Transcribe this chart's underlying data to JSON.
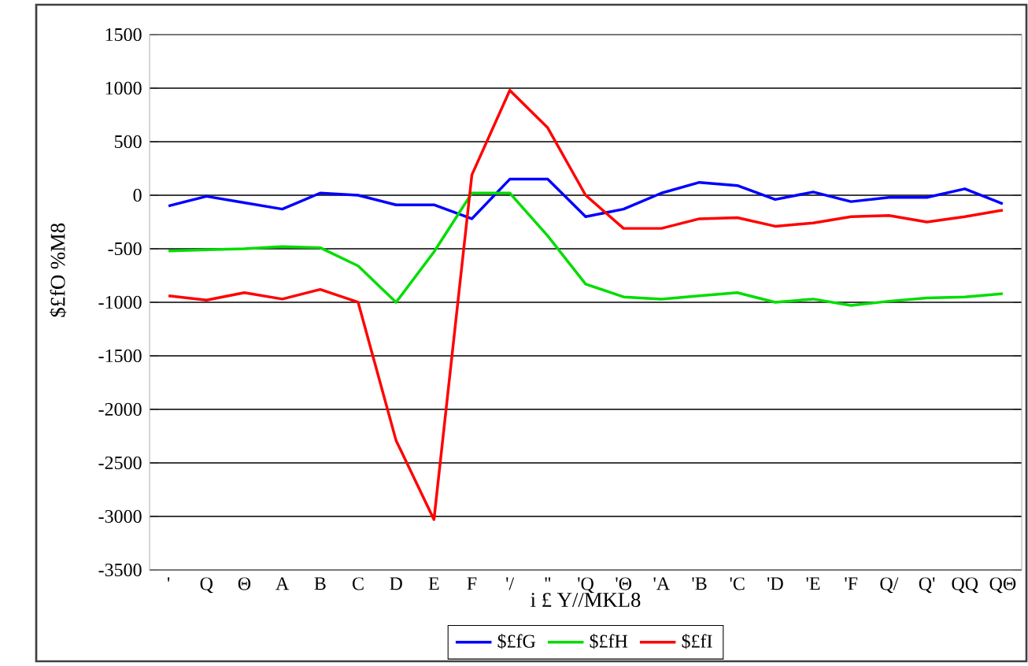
{
  "chart_data": {
    "type": "line",
    "xlabel": "i £ Y//MKL8",
    "ylabel": "$£fO %M8",
    "categories": [
      "'",
      "Q",
      "Θ",
      "A",
      "B",
      "C",
      "D",
      "E",
      "F",
      "'/",
      "''",
      "'Q",
      "'Θ",
      "'A",
      "'B",
      "'C",
      "'D",
      "'E",
      "'F",
      "Q/",
      "Q'",
      "QQ",
      "QΘ"
    ],
    "ylim": [
      -3500,
      1500
    ],
    "yticks": [
      -3500,
      -3000,
      -2500,
      -2000,
      -1500,
      -1000,
      -500,
      0,
      500,
      1000,
      1500
    ],
    "grid": "y",
    "legend": "bottom",
    "line_style": "solid",
    "marker": "none",
    "series": [
      {
        "name": "$£fG",
        "color": "#0000ff",
        "values": [
          -100,
          -10,
          -70,
          -130,
          20,
          0,
          -90,
          -90,
          -220,
          150,
          150,
          -200,
          -130,
          20,
          120,
          90,
          -40,
          30,
          -60,
          -20,
          -20,
          60,
          -80
        ]
      },
      {
        "name": "$£fH",
        "color": "#00dd00",
        "values": [
          -520,
          -510,
          -500,
          -480,
          -490,
          -660,
          -1000,
          -530,
          20,
          20,
          -380,
          -830,
          -950,
          -970,
          -940,
          -910,
          -1000,
          -970,
          -1030,
          -990,
          -960,
          -950,
          -920
        ]
      },
      {
        "name": "$£fI",
        "color": "#ff0000",
        "values": [
          -940,
          -980,
          -910,
          -970,
          -880,
          -1000,
          -2290,
          -3030,
          190,
          980,
          630,
          0,
          -310,
          -310,
          -220,
          -210,
          -290,
          -260,
          -200,
          -190,
          -250,
          -200,
          -140
        ]
      }
    ]
  }
}
